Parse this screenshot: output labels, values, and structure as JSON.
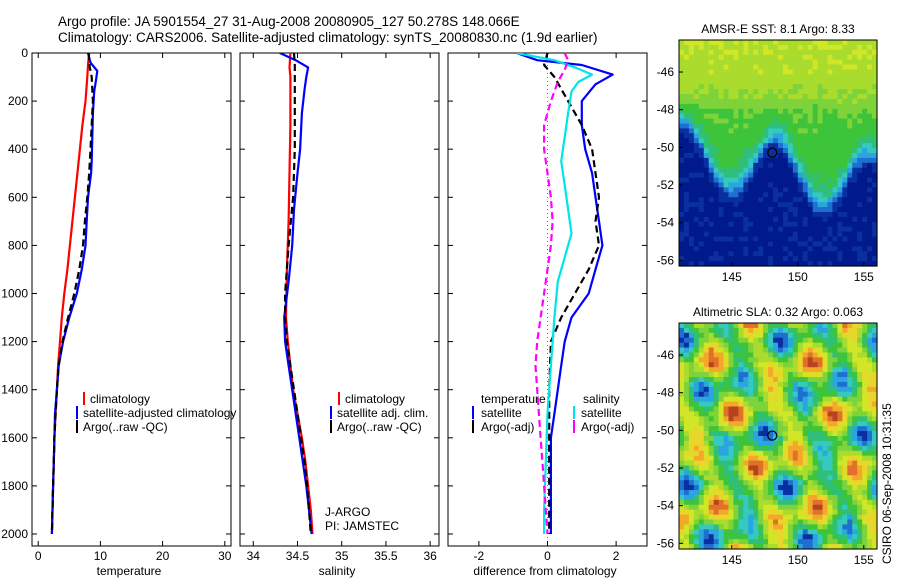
{
  "header": {
    "line1": "Argo profile: JA 5901554_27 31-Aug-2008 20080905_127 50.278S 148.066E",
    "line2": "Climatology: CARS2006. Satellite-adjusted climatology: synTS_20080830.nc (1.9d earlier)"
  },
  "footer_credit": "CSIRO 06-Sep-2008 10:31:35",
  "colors": {
    "climatology": "#ff0000",
    "satellite": "#0000ff",
    "argo": "#000000",
    "sat_salinity": "#00e5e5",
    "argo_adj": "#ff00ff"
  },
  "chart_data": [
    {
      "type": "line",
      "title": "",
      "xlabel": "temperature",
      "ylabel": "",
      "xlim": [
        -1,
        31
      ],
      "ylim": [
        2050,
        0
      ],
      "xticks": [
        "0",
        "10",
        "20",
        "30"
      ],
      "yticks": [
        "0",
        "200",
        "400",
        "600",
        "800",
        "1000",
        "1200",
        "1400",
        "1600",
        "1800",
        "2000"
      ],
      "legend": {
        "placement": "lower-center",
        "entries": [
          "climatology",
          "satellite-adjusted climatology",
          "Argo(..raw -QC)"
        ]
      },
      "series": [
        {
          "name": "climatology",
          "color": "#ff0000",
          "points": [
            [
              8.2,
              0
            ],
            [
              8.0,
              50
            ],
            [
              7.9,
              100
            ],
            [
              7.6,
              200
            ],
            [
              7.1,
              300
            ],
            [
              6.7,
              400
            ],
            [
              6.3,
              500
            ],
            [
              5.9,
              600
            ],
            [
              5.5,
              700
            ],
            [
              5.1,
              800
            ],
            [
              4.7,
              900
            ],
            [
              4.2,
              1000
            ],
            [
              3.8,
              1100
            ],
            [
              3.5,
              1200
            ],
            [
              3.2,
              1300
            ],
            [
              3.0,
              1400
            ],
            [
              2.8,
              1500
            ],
            [
              2.6,
              1600
            ],
            [
              2.5,
              1700
            ],
            [
              2.4,
              1800
            ],
            [
              2.3,
              1900
            ],
            [
              2.2,
              2000
            ]
          ]
        },
        {
          "name": "satellite-adjusted climatology",
          "color": "#0000ff",
          "points": [
            [
              8.0,
              0
            ],
            [
              8.4,
              40
            ],
            [
              9.5,
              75
            ],
            [
              9.3,
              110
            ],
            [
              9.0,
              160
            ],
            [
              8.8,
              250
            ],
            [
              8.7,
              350
            ],
            [
              8.6,
              450
            ],
            [
              8.5,
              500
            ],
            [
              8.0,
              600
            ],
            [
              7.8,
              700
            ],
            [
              7.6,
              800
            ],
            [
              7.0,
              900
            ],
            [
              6.2,
              1000
            ],
            [
              5.0,
              1100
            ],
            [
              4.0,
              1200
            ],
            [
              3.3,
              1300
            ],
            [
              3.0,
              1400
            ],
            [
              2.7,
              1500
            ],
            [
              2.6,
              1600
            ],
            [
              2.5,
              1700
            ],
            [
              2.4,
              1800
            ],
            [
              2.3,
              1900
            ],
            [
              2.2,
              2000
            ]
          ]
        },
        {
          "name": "Argo(..raw -QC)",
          "color": "#000000",
          "dashed": true,
          "points": [
            [
              8.1,
              0
            ],
            [
              8.3,
              60
            ],
            [
              8.6,
              100
            ],
            [
              8.8,
              200
            ],
            [
              8.6,
              300
            ],
            [
              8.4,
              400
            ],
            [
              8.2,
              500
            ],
            [
              7.9,
              600
            ],
            [
              7.5,
              700
            ],
            [
              7.2,
              800
            ],
            [
              6.6,
              900
            ],
            [
              5.8,
              1000
            ],
            [
              4.8,
              1100
            ],
            [
              3.9,
              1200
            ],
            [
              3.3,
              1300
            ],
            [
              3.0,
              1400
            ],
            [
              2.8,
              1500
            ],
            [
              2.6,
              1600
            ],
            [
              2.5,
              1700
            ],
            [
              2.4,
              1800
            ],
            [
              2.3,
              1900
            ],
            [
              2.2,
              2000
            ]
          ]
        }
      ]
    },
    {
      "type": "line",
      "title": "",
      "xlabel": "salinity",
      "xlim": [
        33.85,
        36.1
      ],
      "ylim": [
        2050,
        0
      ],
      "xticks": [
        "34",
        "34.5",
        "35",
        "35.5",
        "36"
      ],
      "legend": {
        "placement": "lower-center",
        "entries": [
          "climatology",
          "satellite adj. clim.",
          "Argo(..raw -QC)"
        ]
      },
      "annotations": [
        "J-ARGO",
        "PI: JAMSTEC"
      ],
      "series": [
        {
          "name": "climatology",
          "color": "#ff0000",
          "points": [
            [
              34.42,
              0
            ],
            [
              34.41,
              60
            ],
            [
              34.42,
              100
            ],
            [
              34.42,
              300
            ],
            [
              34.41,
              500
            ],
            [
              34.4,
              700
            ],
            [
              34.38,
              900
            ],
            [
              34.37,
              1100
            ],
            [
              34.39,
              1200
            ],
            [
              34.42,
              1300
            ],
            [
              34.45,
              1400
            ],
            [
              34.5,
              1500
            ],
            [
              34.55,
              1600
            ],
            [
              34.59,
              1700
            ],
            [
              34.62,
              1800
            ],
            [
              34.65,
              1900
            ],
            [
              34.67,
              2000
            ]
          ]
        },
        {
          "name": "satellite adj. clim.",
          "color": "#0000ff",
          "points": [
            [
              34.3,
              0
            ],
            [
              34.48,
              30
            ],
            [
              34.62,
              60
            ],
            [
              34.6,
              100
            ],
            [
              34.58,
              150
            ],
            [
              34.55,
              250
            ],
            [
              34.53,
              400
            ],
            [
              34.5,
              500
            ],
            [
              34.46,
              650
            ],
            [
              34.44,
              800
            ],
            [
              34.4,
              950
            ],
            [
              34.35,
              1100
            ],
            [
              34.36,
              1200
            ],
            [
              34.4,
              1300
            ],
            [
              34.44,
              1400
            ],
            [
              34.48,
              1500
            ],
            [
              34.52,
              1600
            ],
            [
              34.56,
              1700
            ],
            [
              34.6,
              1800
            ],
            [
              34.63,
              1900
            ],
            [
              34.66,
              2000
            ]
          ]
        },
        {
          "name": "Argo(..raw -QC)",
          "color": "#000000",
          "dashed": true,
          "points": [
            [
              34.46,
              0
            ],
            [
              34.47,
              50
            ],
            [
              34.47,
              100
            ],
            [
              34.47,
              200
            ],
            [
              34.47,
              400
            ],
            [
              34.45,
              600
            ],
            [
              34.4,
              800
            ],
            [
              34.36,
              1000
            ],
            [
              34.36,
              1100
            ],
            [
              34.38,
              1200
            ],
            [
              34.42,
              1300
            ],
            [
              34.46,
              1400
            ],
            [
              34.5,
              1500
            ],
            [
              34.54,
              1600
            ],
            [
              34.58,
              1700
            ],
            [
              34.61,
              1800
            ],
            [
              34.63,
              1900
            ],
            [
              34.65,
              2000
            ]
          ]
        }
      ]
    },
    {
      "type": "line",
      "title": "",
      "xlabel": "difference from climatology",
      "xlim": [
        -2.9,
        2.9
      ],
      "ylim": [
        2050,
        0
      ],
      "xticks": [
        "-2",
        "0",
        "2"
      ],
      "legend": {
        "placement": "lower-center",
        "group_labels": [
          "temperature",
          "salinity"
        ],
        "entries": [
          "satellite",
          "Argo(-adj)",
          "satellite",
          "Argo(-adj)"
        ]
      },
      "series": [
        {
          "name": "temperature satellite",
          "color": "#0000ff",
          "points": [
            [
              -0.9,
              0
            ],
            [
              -0.3,
              30
            ],
            [
              1.0,
              50
            ],
            [
              1.9,
              90
            ],
            [
              1.4,
              130
            ],
            [
              1.0,
              200
            ],
            [
              1.0,
              300
            ],
            [
              1.1,
              400
            ],
            [
              1.3,
              500
            ],
            [
              1.4,
              600
            ],
            [
              1.5,
              700
            ],
            [
              1.6,
              800
            ],
            [
              1.4,
              900
            ],
            [
              1.2,
              1000
            ],
            [
              0.7,
              1100
            ],
            [
              0.5,
              1200
            ],
            [
              0.4,
              1300
            ],
            [
              0.3,
              1400
            ],
            [
              0.2,
              1500
            ],
            [
              0.1,
              1600
            ],
            [
              0.1,
              1800
            ],
            [
              0.1,
              2000
            ]
          ]
        },
        {
          "name": "temperature Argo(-adj)",
          "color": "#000000",
          "dashed": true,
          "points": [
            [
              0.0,
              0
            ],
            [
              -0.1,
              50
            ],
            [
              0.2,
              100
            ],
            [
              0.6,
              200
            ],
            [
              1.0,
              300
            ],
            [
              1.3,
              400
            ],
            [
              1.4,
              500
            ],
            [
              1.5,
              600
            ],
            [
              1.4,
              700
            ],
            [
              1.5,
              800
            ],
            [
              1.2,
              900
            ],
            [
              0.8,
              1000
            ],
            [
              0.4,
              1100
            ],
            [
              0.1,
              1200
            ],
            [
              0.05,
              1400
            ],
            [
              0.05,
              1600
            ],
            [
              0.05,
              1800
            ],
            [
              0.05,
              2000
            ]
          ]
        },
        {
          "name": "salinity satellite",
          "color": "#00e5e5",
          "points": [
            [
              -0.9,
              0
            ],
            [
              0.2,
              30
            ],
            [
              0.8,
              60
            ],
            [
              1.3,
              90
            ],
            [
              0.9,
              120
            ],
            [
              0.7,
              160
            ],
            [
              0.6,
              250
            ],
            [
              0.5,
              350
            ],
            [
              0.4,
              450
            ],
            [
              0.5,
              550
            ],
            [
              0.6,
              650
            ],
            [
              0.7,
              750
            ],
            [
              0.5,
              850
            ],
            [
              0.3,
              950
            ],
            [
              0.2,
              1100
            ],
            [
              0.1,
              1300
            ],
            [
              0.0,
              1500
            ],
            [
              -0.05,
              1700
            ],
            [
              -0.1,
              1900
            ],
            [
              -0.1,
              2000
            ]
          ]
        },
        {
          "name": "salinity Argo(-adj)",
          "color": "#ff00ff",
          "dashed": true,
          "points": [
            [
              0.5,
              0
            ],
            [
              0.6,
              30
            ],
            [
              0.5,
              70
            ],
            [
              0.3,
              120
            ],
            [
              0.1,
              200
            ],
            [
              -0.1,
              300
            ],
            [
              -0.1,
              400
            ],
            [
              0.0,
              500
            ],
            [
              0.1,
              600
            ],
            [
              0.15,
              700
            ],
            [
              0.1,
              800
            ],
            [
              0.0,
              900
            ],
            [
              -0.1,
              1000
            ],
            [
              -0.2,
              1100
            ],
            [
              -0.3,
              1200
            ],
            [
              -0.35,
              1300
            ],
            [
              -0.3,
              1400
            ],
            [
              -0.25,
              1500
            ],
            [
              -0.2,
              1600
            ],
            [
              -0.15,
              1700
            ],
            [
              -0.1,
              1800
            ],
            [
              -0.05,
              1900
            ],
            [
              0.0,
              2000
            ]
          ]
        }
      ]
    },
    {
      "type": "heatmap",
      "title": "AMSR-E SST: 8.1  Argo: 8.33",
      "xlim": [
        141,
        156
      ],
      "ylim": [
        -56.3,
        -44.3
      ],
      "xticks": [
        "145",
        "150",
        "155"
      ],
      "yticks": [
        "-46",
        "-48",
        "-50",
        "-52",
        "-54",
        "-56"
      ],
      "marker": {
        "lon": 148.066,
        "lat": -50.278
      }
    },
    {
      "type": "heatmap",
      "title": "Altimetric SLA: 0.32  Argo: 0.063",
      "xlim": [
        141,
        156
      ],
      "ylim": [
        -56.3,
        -44.3
      ],
      "xticks": [
        "145",
        "150",
        "155"
      ],
      "yticks": [
        "-46",
        "-48",
        "-50",
        "-52",
        "-54",
        "-56"
      ],
      "marker": {
        "lon": 148.066,
        "lat": -50.278
      }
    }
  ]
}
